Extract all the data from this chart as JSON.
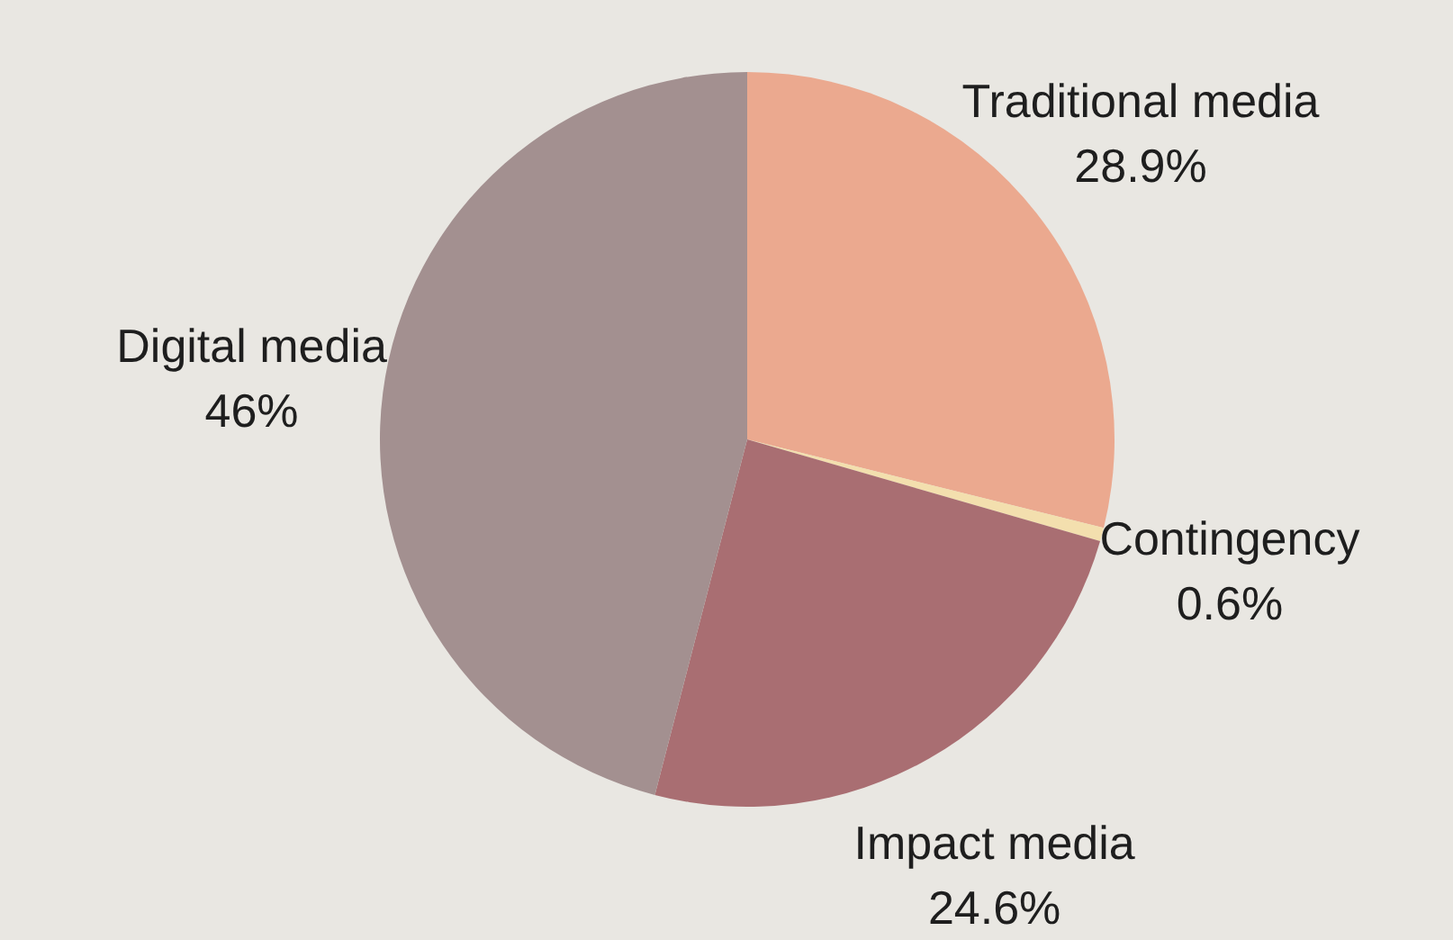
{
  "chart_data": {
    "type": "pie",
    "categories": [
      "Traditional media",
      "Contingency",
      "Impact media",
      "Digital media"
    ],
    "values": [
      28.9,
      0.6,
      24.6,
      46
    ],
    "value_labels": [
      "28.9%",
      "0.6%",
      "24.6%",
      "46%"
    ],
    "colors": [
      "#eba98f",
      "#f3dfae",
      "#a96e72",
      "#a39090"
    ],
    "legend": false
  }
}
